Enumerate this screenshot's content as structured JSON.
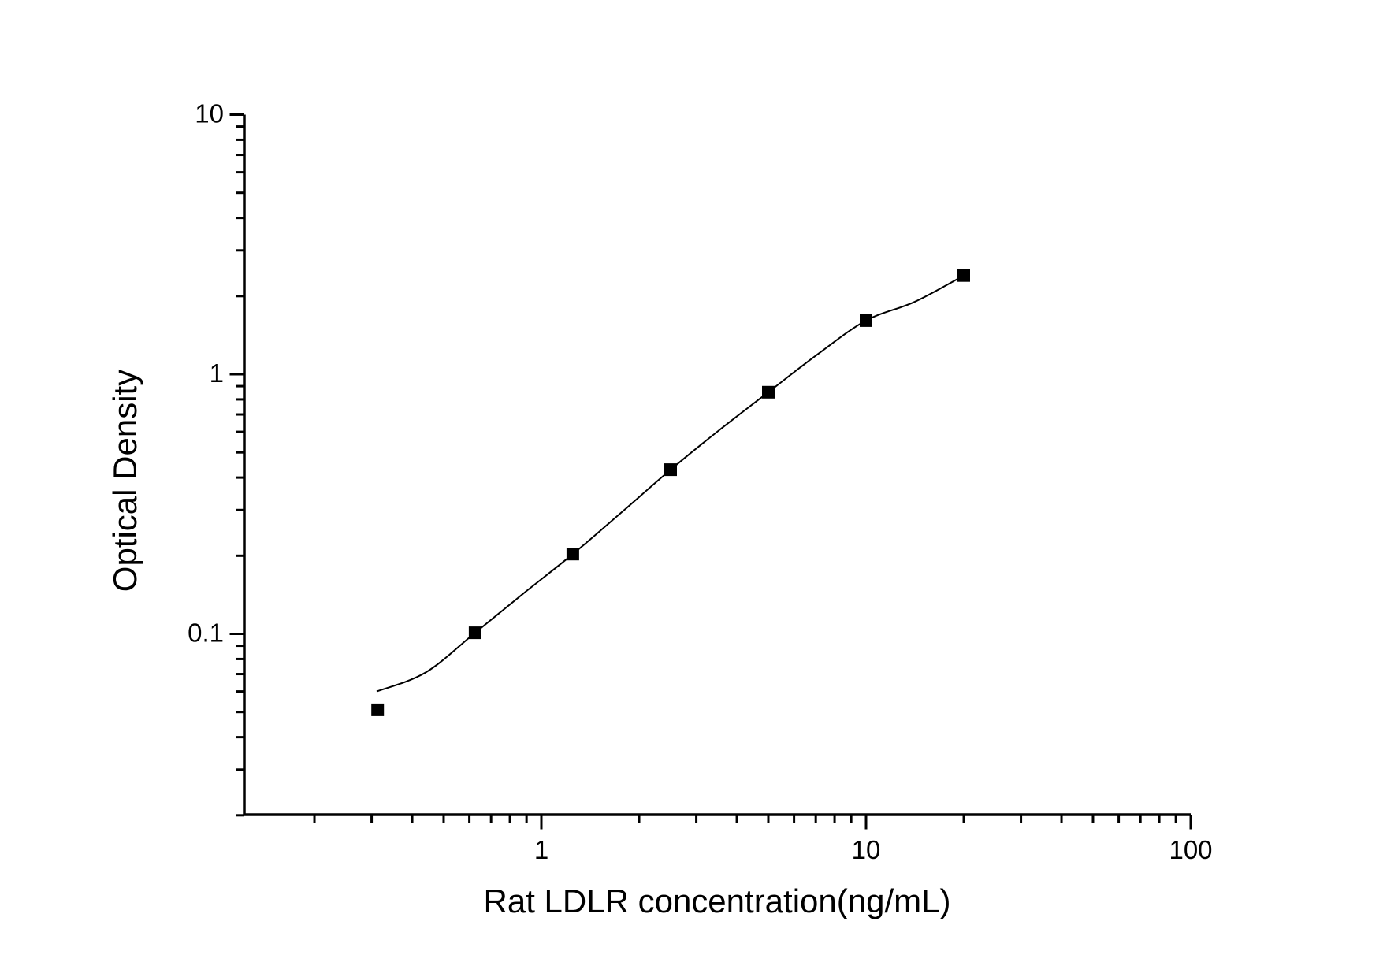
{
  "figure": {
    "background_color": "#ffffff",
    "axis_color": "#000000"
  },
  "chart_data": {
    "type": "scatter",
    "title": "",
    "xlabel": "Rat LDLR concentration(ng/mL)",
    "ylabel": "Optical Density",
    "xscale": "log",
    "yscale": "log",
    "xlim": [
      0.122,
      100
    ],
    "ylim": [
      0.02,
      10
    ],
    "grid": false,
    "legend": false,
    "marker": "filled-square",
    "marker_color": "#000000",
    "line_color": "#000000",
    "x_major_ticks": [
      1,
      10,
      100
    ],
    "x_major_tick_labels": [
      "1",
      "10",
      "100"
    ],
    "x_minor_ticks": [
      0.2,
      0.3,
      0.4,
      0.5,
      0.6,
      0.7,
      0.8,
      0.9,
      2,
      3,
      4,
      5,
      6,
      7,
      8,
      9,
      20,
      30,
      40,
      50,
      60,
      70,
      80,
      90
    ],
    "y_major_ticks": [
      10,
      1,
      0.1
    ],
    "y_major_tick_labels": [
      "10",
      "1",
      "0.1"
    ],
    "y_minor_ticks": [
      9,
      8,
      7,
      6,
      5,
      4,
      3,
      2,
      0.9,
      0.8,
      0.7,
      0.6,
      0.5,
      0.4,
      0.3,
      0.2,
      0.09,
      0.08,
      0.07,
      0.06,
      0.05,
      0.04,
      0.03,
      0.02
    ],
    "series": [
      {
        "x": [
          0.313,
          0.625,
          1.25,
          2.5,
          5,
          10,
          20
        ],
        "y": [
          0.051,
          0.101,
          0.203,
          0.429,
          0.853,
          1.61,
          2.4
        ]
      }
    ],
    "fit_curve": [
      [
        0.311,
        0.06
      ],
      [
        0.44,
        0.071
      ],
      [
        0.625,
        0.101
      ],
      [
        0.88,
        0.143
      ],
      [
        1.25,
        0.203
      ],
      [
        1.8,
        0.3
      ],
      [
        2.5,
        0.429
      ],
      [
        3.5,
        0.604
      ],
      [
        5,
        0.853
      ],
      [
        7.07,
        1.19
      ],
      [
        10,
        1.61
      ],
      [
        14.1,
        1.9
      ],
      [
        20,
        2.4
      ]
    ]
  }
}
